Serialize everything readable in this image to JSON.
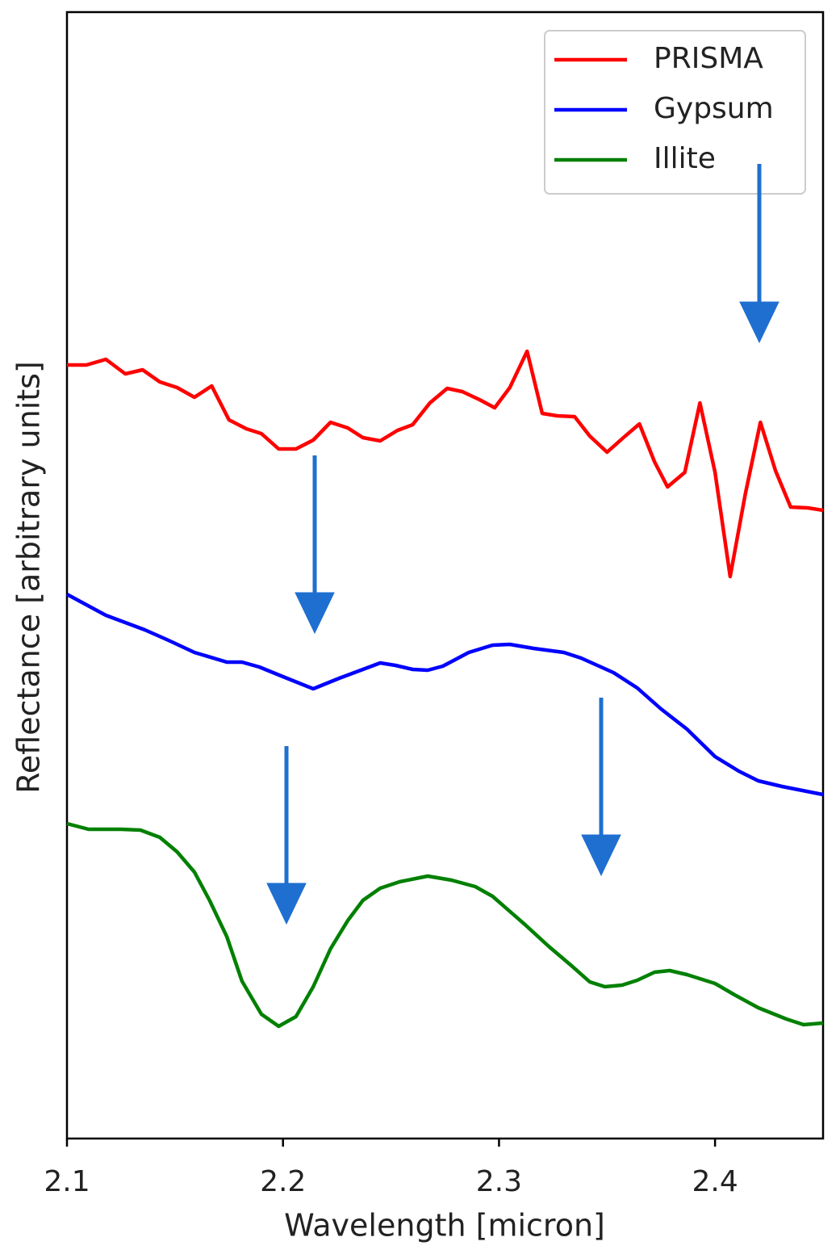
{
  "chart_data": {
    "type": "line",
    "x_label": "Wavelength [micron]",
    "y_label": "Reflectance [arbitrary units]",
    "xlim": [
      2.1,
      2.45
    ],
    "xticks": [
      2.1,
      2.2,
      2.3,
      2.4
    ],
    "ylim": [
      0,
      139.5
    ],
    "legend": "upper right",
    "series": [
      {
        "name": "PRISMA",
        "color": "#ff0000",
        "x": [
          2.1,
          2.109,
          2.118,
          2.127,
          2.135,
          2.143,
          2.151,
          2.159,
          2.167,
          2.175,
          2.183,
          2.19,
          2.198,
          2.206,
          2.214,
          2.222,
          2.23,
          2.237,
          2.245,
          2.253,
          2.26,
          2.268,
          2.276,
          2.283,
          2.291,
          2.298,
          2.305,
          2.313,
          2.32,
          2.327,
          2.335,
          2.342,
          2.35,
          2.358,
          2.365,
          2.372,
          2.378,
          2.386,
          2.393,
          2.4,
          2.407,
          2.414,
          2.421,
          2.428,
          2.435,
          2.443,
          2.45
        ],
        "values": [
          95.8,
          95.8,
          96.5,
          94.7,
          95.2,
          93.7,
          93.0,
          91.8,
          93.2,
          89.0,
          87.9,
          87.3,
          85.4,
          85.4,
          86.5,
          88.7,
          88.0,
          86.8,
          86.4,
          87.7,
          88.4,
          91.1,
          92.9,
          92.5,
          91.5,
          90.5,
          93.0,
          97.5,
          89.8,
          89.5,
          89.4,
          87.0,
          85.0,
          86.9,
          88.5,
          83.8,
          80.7,
          82.5,
          91.1,
          82.5,
          69.6,
          79.8,
          88.7,
          82.7,
          78.2,
          78.1,
          77.8
        ]
      },
      {
        "name": "Gypsum",
        "color": "#0000ff",
        "x": [
          2.1,
          2.118,
          2.136,
          2.147,
          2.159,
          2.174,
          2.181,
          2.189,
          2.2,
          2.214,
          2.226,
          2.245,
          2.252,
          2.26,
          2.267,
          2.274,
          2.286,
          2.297,
          2.305,
          2.316,
          2.33,
          2.338,
          2.353,
          2.364,
          2.375,
          2.387,
          2.4,
          2.411,
          2.42,
          2.431,
          2.45
        ],
        "values": [
          67.4,
          64.8,
          63.0,
          61.7,
          60.2,
          59.0,
          59.0,
          58.4,
          57.2,
          55.7,
          57.0,
          58.9,
          58.6,
          58.1,
          58.0,
          58.5,
          60.2,
          61.1,
          61.2,
          60.7,
          60.2,
          59.5,
          57.7,
          55.8,
          53.2,
          50.7,
          47.3,
          45.5,
          44.3,
          43.6,
          42.6
        ]
      },
      {
        "name": "Illite",
        "color": "#008000",
        "x": [
          2.1,
          2.11,
          2.125,
          2.134,
          2.143,
          2.151,
          2.159,
          2.166,
          2.174,
          2.181,
          2.19,
          2.198,
          2.206,
          2.214,
          2.222,
          2.23,
          2.237,
          2.245,
          2.254,
          2.267,
          2.278,
          2.289,
          2.297,
          2.312,
          2.323,
          2.334,
          2.342,
          2.349,
          2.357,
          2.364,
          2.372,
          2.379,
          2.387,
          2.4,
          2.409,
          2.42,
          2.433,
          2.441,
          2.45
        ],
        "values": [
          39.0,
          38.3,
          38.3,
          38.2,
          37.3,
          35.5,
          33.0,
          29.5,
          25.0,
          19.5,
          15.4,
          13.9,
          15.1,
          18.8,
          23.5,
          27.0,
          29.5,
          31.0,
          31.8,
          32.5,
          32.0,
          31.2,
          30.0,
          26.5,
          23.8,
          21.3,
          19.4,
          18.8,
          19.0,
          19.6,
          20.6,
          20.8,
          20.3,
          19.2,
          17.8,
          16.2,
          14.8,
          14.1,
          14.3
        ]
      }
    ]
  }
}
